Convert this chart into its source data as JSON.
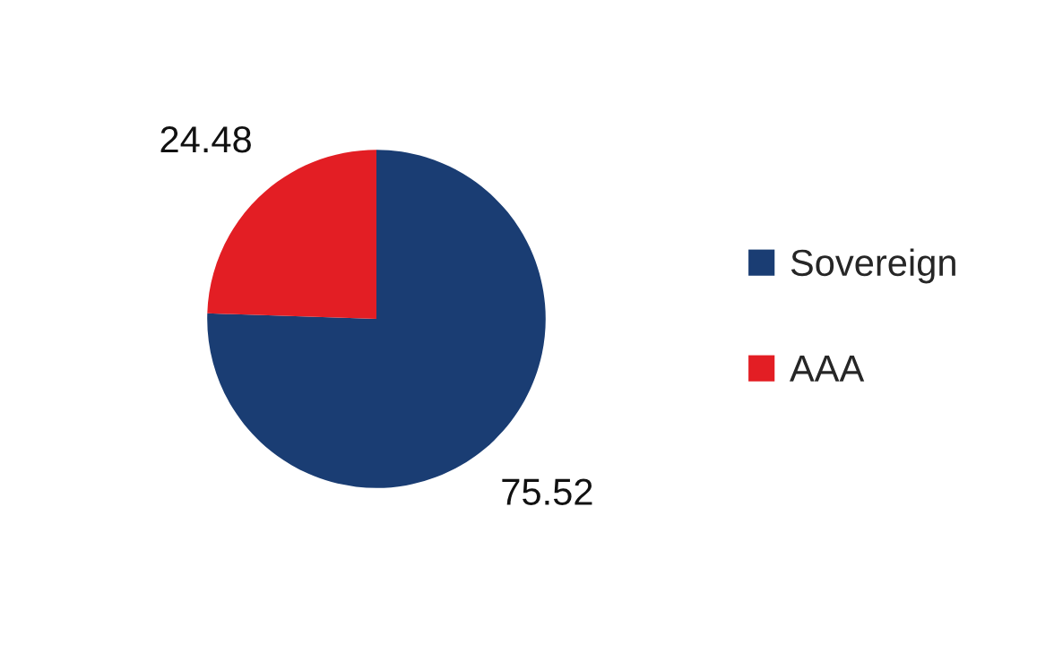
{
  "chart_data": {
    "type": "pie",
    "categories": [
      "Sovereign",
      "AAA"
    ],
    "values": [
      75.52,
      24.48
    ],
    "colors": [
      "#1a3d73",
      "#e31e24"
    ],
    "data_labels": true,
    "legend": "right"
  }
}
